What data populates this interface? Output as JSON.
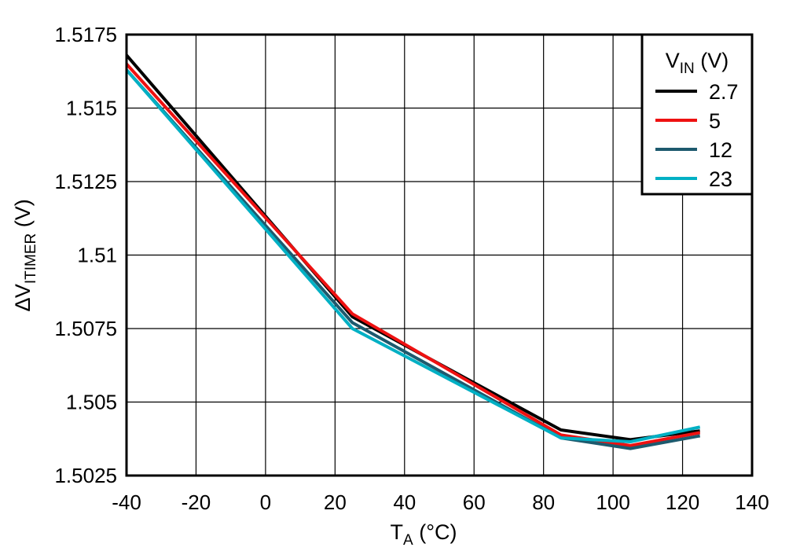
{
  "chart_data": {
    "type": "line",
    "xlabel": {
      "main": "T",
      "sub": "A",
      "unit": " (°C)"
    },
    "ylabel": {
      "prefix": "∆V",
      "sub": "ITIMER",
      "unit": " (V)"
    },
    "xlim": [
      -40,
      140
    ],
    "ylim": [
      1.5025,
      1.5175
    ],
    "xticks": [
      "-40",
      "-20",
      "0",
      "20",
      "40",
      "60",
      "80",
      "100",
      "120",
      "140"
    ],
    "xtick_values": [
      -40,
      -20,
      0,
      20,
      40,
      60,
      80,
      100,
      120,
      140
    ],
    "yticks": [
      "1.5025",
      "1.505",
      "1.5075",
      "1.51",
      "1.5125",
      "1.515",
      "1.5175"
    ],
    "ytick_values": [
      1.5025,
      1.505,
      1.5075,
      1.51,
      1.5125,
      1.515,
      1.5175
    ],
    "grid": true,
    "legend": {
      "title": {
        "main": "V",
        "sub": "IN",
        "unit": " (V)"
      },
      "position": "top-right"
    },
    "series": [
      {
        "name": "2.7",
        "color": "#000000",
        "x": [
          -40,
          25,
          85,
          105,
          125
        ],
        "y": [
          1.5168,
          1.5079,
          1.50405,
          1.50372,
          1.50402
        ]
      },
      {
        "name": "5",
        "color": "#ee1111",
        "x": [
          -40,
          25,
          85,
          105,
          125
        ],
        "y": [
          1.5165,
          1.508,
          1.50388,
          1.50352,
          1.50396
        ]
      },
      {
        "name": "12",
        "color": "#1d5a6e",
        "x": [
          -40,
          25,
          85,
          105,
          125
        ],
        "y": [
          1.5163,
          1.5077,
          1.50378,
          1.50342,
          1.50385
        ]
      },
      {
        "name": "23",
        "color": "#00b0c4",
        "x": [
          -40,
          25,
          85,
          105,
          125
        ],
        "y": [
          1.5163,
          1.5075,
          1.50378,
          1.50365,
          1.50415
        ]
      }
    ]
  }
}
